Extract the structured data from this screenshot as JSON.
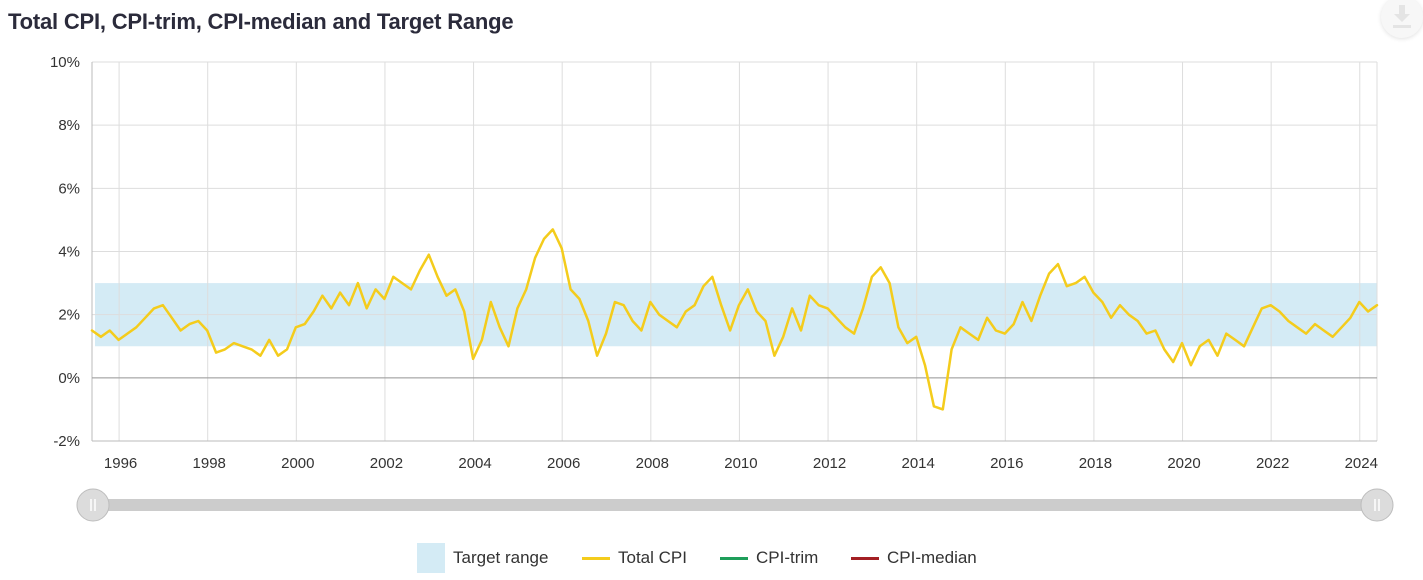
{
  "title": "Total CPI, CPI-trim, CPI-median and Target Range",
  "icons": {
    "download": "download-icon"
  },
  "legend": [
    {
      "key": "target",
      "label": "Target range",
      "color": "#d4ebf5",
      "kind": "box"
    },
    {
      "key": "total",
      "label": "Total CPI",
      "color": "#f4cc1c",
      "kind": "line"
    },
    {
      "key": "trim",
      "label": "CPI-trim",
      "color": "#1e9e5a",
      "kind": "line"
    },
    {
      "key": "median",
      "label": "CPI-median",
      "color": "#a31f24",
      "kind": "line"
    }
  ],
  "chart_data": {
    "type": "line",
    "title": "Total CPI, CPI-trim, CPI-median and Target Range",
    "xlabel": "",
    "ylabel": "",
    "xlim": [
      1995.4,
      2024.4
    ],
    "ylim": [
      -2,
      10
    ],
    "y_ticks": [
      -2,
      0,
      2,
      4,
      6,
      8,
      10
    ],
    "y_tick_labels": [
      "-2%",
      "0%",
      "2%",
      "4%",
      "6%",
      "8%",
      "10%"
    ],
    "x_ticks": [
      1996,
      1998,
      2000,
      2002,
      2004,
      2006,
      2008,
      2010,
      2012,
      2014,
      2016,
      2018,
      2020,
      2022,
      2024
    ],
    "x_tick_labels": [
      "1996",
      "1998",
      "2000",
      "2002",
      "2004",
      "2006",
      "2008",
      "2010",
      "2012",
      "2014",
      "2016",
      "2018",
      "2020",
      "2022",
      "2024"
    ],
    "grid": true,
    "legend_position": "bottom",
    "band": {
      "name": "Target range",
      "low": 1,
      "high": 3,
      "color": "#d4ebf5"
    },
    "series": [
      {
        "name": "Total CPI",
        "color": "#f4cc1c",
        "points": [
          [
            1995.4,
            1.5
          ],
          [
            1995.6,
            1.3
          ],
          [
            1995.8,
            1.5
          ],
          [
            1996.0,
            1.2
          ],
          [
            1996.2,
            1.4
          ],
          [
            1996.4,
            1.6
          ],
          [
            1996.6,
            1.9
          ],
          [
            1996.8,
            2.2
          ],
          [
            1997.0,
            2.3
          ],
          [
            1997.2,
            1.9
          ],
          [
            1997.4,
            1.5
          ],
          [
            1997.6,
            1.7
          ],
          [
            1997.8,
            1.8
          ],
          [
            1998.0,
            1.5
          ],
          [
            1998.2,
            0.8
          ],
          [
            1998.4,
            0.9
          ],
          [
            1998.6,
            1.1
          ],
          [
            1998.8,
            1.0
          ],
          [
            1999.0,
            0.9
          ],
          [
            1999.2,
            0.7
          ],
          [
            1999.4,
            1.2
          ],
          [
            1999.6,
            0.7
          ],
          [
            1999.8,
            0.9
          ],
          [
            2000.0,
            1.6
          ],
          [
            2000.2,
            1.7
          ],
          [
            2000.4,
            2.1
          ],
          [
            2000.6,
            2.6
          ],
          [
            2000.8,
            2.2
          ],
          [
            2001.0,
            2.7
          ],
          [
            2001.2,
            2.3
          ],
          [
            2001.4,
            3.0
          ],
          [
            2001.6,
            2.2
          ],
          [
            2001.8,
            2.8
          ],
          [
            2002.0,
            2.5
          ],
          [
            2002.2,
            3.2
          ],
          [
            2002.4,
            3.0
          ],
          [
            2002.6,
            2.8
          ],
          [
            2002.8,
            3.4
          ],
          [
            2003.0,
            3.9
          ],
          [
            2003.2,
            3.2
          ],
          [
            2003.4,
            2.6
          ],
          [
            2003.6,
            2.8
          ],
          [
            2003.8,
            2.1
          ],
          [
            2004.0,
            0.6
          ],
          [
            2004.2,
            1.2
          ],
          [
            2004.4,
            2.4
          ],
          [
            2004.6,
            1.6
          ],
          [
            2004.8,
            1.0
          ],
          [
            2005.0,
            2.2
          ],
          [
            2005.2,
            2.8
          ],
          [
            2005.4,
            3.8
          ],
          [
            2005.6,
            4.4
          ],
          [
            2005.8,
            4.7
          ],
          [
            2006.0,
            4.1
          ],
          [
            2006.2,
            2.8
          ],
          [
            2006.4,
            2.5
          ],
          [
            2006.6,
            1.8
          ],
          [
            2006.8,
            0.7
          ],
          [
            2007.0,
            1.4
          ],
          [
            2007.2,
            2.4
          ],
          [
            2007.4,
            2.3
          ],
          [
            2007.6,
            1.8
          ],
          [
            2007.8,
            1.5
          ],
          [
            2008.0,
            2.4
          ],
          [
            2008.2,
            2.0
          ],
          [
            2008.4,
            1.8
          ],
          [
            2008.6,
            1.6
          ],
          [
            2008.8,
            2.1
          ],
          [
            2009.0,
            2.3
          ],
          [
            2009.2,
            2.9
          ],
          [
            2009.4,
            3.2
          ],
          [
            2009.6,
            2.3
          ],
          [
            2009.8,
            1.5
          ],
          [
            2010.0,
            2.3
          ],
          [
            2010.2,
            2.8
          ],
          [
            2010.4,
            2.1
          ],
          [
            2010.6,
            1.8
          ],
          [
            2010.8,
            0.7
          ],
          [
            2011.0,
            1.3
          ],
          [
            2011.2,
            2.2
          ],
          [
            2011.4,
            1.5
          ],
          [
            2011.6,
            2.6
          ],
          [
            2011.8,
            2.3
          ],
          [
            2012.0,
            2.2
          ],
          [
            2012.2,
            1.9
          ],
          [
            2012.4,
            1.6
          ],
          [
            2012.6,
            1.4
          ],
          [
            2012.8,
            2.2
          ],
          [
            2013.0,
            3.2
          ],
          [
            2013.2,
            3.5
          ],
          [
            2013.4,
            3.0
          ],
          [
            2013.6,
            1.6
          ],
          [
            2013.8,
            1.1
          ],
          [
            2014.0,
            1.3
          ],
          [
            2014.2,
            0.4
          ],
          [
            2014.4,
            -0.9
          ],
          [
            2014.6,
            -1.0
          ],
          [
            2014.8,
            0.9
          ],
          [
            2015.0,
            1.6
          ],
          [
            2015.2,
            1.4
          ],
          [
            2015.4,
            1.2
          ],
          [
            2015.6,
            1.9
          ],
          [
            2015.8,
            1.5
          ],
          [
            2016.0,
            1.4
          ],
          [
            2016.2,
            1.7
          ],
          [
            2016.4,
            2.4
          ],
          [
            2016.6,
            1.8
          ],
          [
            2016.8,
            2.6
          ],
          [
            2017.0,
            3.3
          ],
          [
            2017.2,
            3.6
          ],
          [
            2017.4,
            2.9
          ],
          [
            2017.6,
            3.0
          ],
          [
            2017.8,
            3.2
          ],
          [
            2018.0,
            2.7
          ],
          [
            2018.2,
            2.4
          ],
          [
            2018.4,
            1.9
          ],
          [
            2018.6,
            2.3
          ],
          [
            2018.8,
            2.0
          ],
          [
            2019.0,
            1.8
          ],
          [
            2019.2,
            1.4
          ],
          [
            2019.4,
            1.5
          ],
          [
            2019.6,
            0.9
          ],
          [
            2019.8,
            0.5
          ],
          [
            2020.0,
            1.1
          ],
          [
            2020.2,
            0.4
          ],
          [
            2020.4,
            1.0
          ],
          [
            2020.6,
            1.2
          ],
          [
            2020.8,
            0.7
          ],
          [
            2021.0,
            1.4
          ],
          [
            2021.2,
            1.2
          ],
          [
            2021.4,
            1.0
          ],
          [
            2021.6,
            1.6
          ],
          [
            2021.8,
            2.2
          ],
          [
            2022.0,
            2.3
          ],
          [
            2022.2,
            2.1
          ],
          [
            2022.4,
            1.8
          ],
          [
            2022.6,
            1.6
          ],
          [
            2022.8,
            1.4
          ],
          [
            2023.0,
            1.7
          ],
          [
            2023.2,
            1.5
          ],
          [
            2023.4,
            1.3
          ],
          [
            2023.6,
            1.6
          ],
          [
            2023.8,
            1.9
          ],
          [
            2024.0,
            2.4
          ],
          [
            2024.2,
            2.1
          ],
          [
            2024.4,
            2.3
          ]
        ]
      },
      {
        "name": "CPI-trim",
        "color": "#1e9e5a",
        "points": []
      },
      {
        "name": "CPI-median",
        "color": "#a31f24",
        "points": []
      }
    ]
  }
}
